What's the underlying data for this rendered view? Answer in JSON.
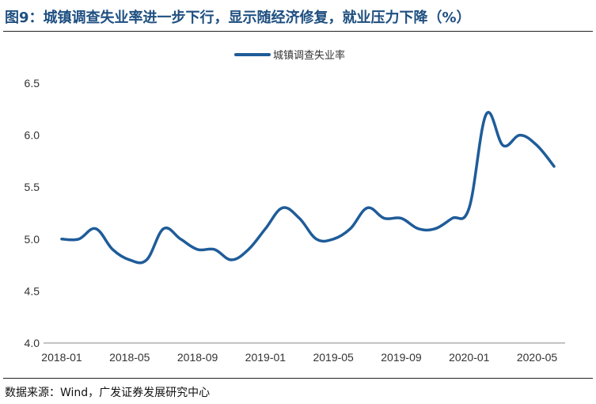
{
  "header": {
    "title": "图9：城镇调查失业率进一步下行，显示随经济修复，就业压力下降（%）"
  },
  "footer": {
    "source": "数据来源：Wind，广发证券发展研究中心"
  },
  "colors": {
    "series": "#1f5c99",
    "title": "#1e4f80"
  },
  "chart_data": {
    "type": "line",
    "title": "",
    "xlabel": "",
    "ylabel": "",
    "legend_position": "top-center",
    "grid": false,
    "ylim": [
      4.0,
      6.5
    ],
    "yticks": [
      "4.0",
      "4.5",
      "5.0",
      "5.5",
      "6.0",
      "6.5"
    ],
    "xticks": [
      "2018-01",
      "2018-05",
      "2018-09",
      "2019-01",
      "2019-05",
      "2019-09",
      "2020-01",
      "2020-05"
    ],
    "x": [
      "2018-01",
      "2018-02",
      "2018-03",
      "2018-04",
      "2018-05",
      "2018-06",
      "2018-07",
      "2018-08",
      "2018-09",
      "2018-10",
      "2018-11",
      "2018-12",
      "2019-01",
      "2019-02",
      "2019-03",
      "2019-04",
      "2019-05",
      "2019-06",
      "2019-07",
      "2019-08",
      "2019-09",
      "2019-10",
      "2019-11",
      "2019-12",
      "2020-01",
      "2020-02",
      "2020-03",
      "2020-04",
      "2020-05",
      "2020-06"
    ],
    "series": [
      {
        "name": "城镇调查失业率",
        "values": [
          5.0,
          5.0,
          5.1,
          4.9,
          4.8,
          4.8,
          5.1,
          5.0,
          4.9,
          4.9,
          4.8,
          4.9,
          5.1,
          5.3,
          5.2,
          5.0,
          5.0,
          5.1,
          5.3,
          5.2,
          5.2,
          5.1,
          5.1,
          5.2,
          5.3,
          6.2,
          5.9,
          6.0,
          5.9,
          5.7
        ]
      }
    ]
  }
}
